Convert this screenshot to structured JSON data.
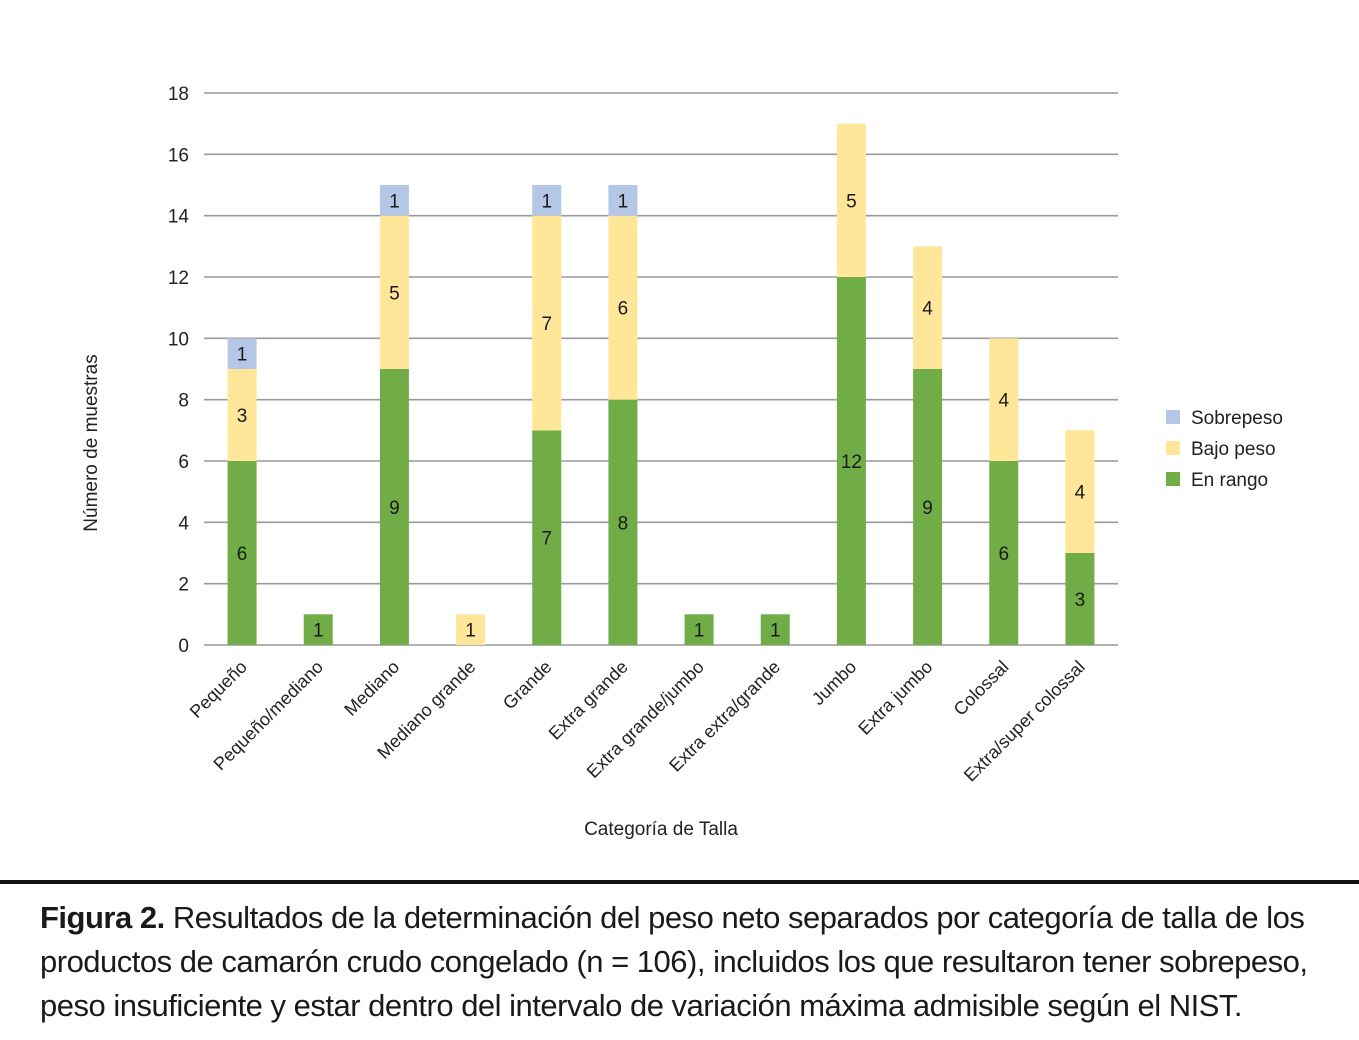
{
  "chart_data": {
    "type": "bar",
    "stacked": true,
    "categories": [
      "Pequeño",
      "Pequeño/mediano",
      "Mediano",
      "Mediano grande",
      "Grande",
      "Extra grande",
      "Extra grande/jumbo",
      "Extra extra/grande",
      "Jumbo",
      "Extra jumbo",
      "Colossal",
      "Extra/super colossal"
    ],
    "series": [
      {
        "name": "En rango",
        "color": "#70ad47",
        "values": [
          6,
          1,
          9,
          0,
          7,
          8,
          1,
          1,
          12,
          9,
          6,
          3
        ]
      },
      {
        "name": "Bajo peso",
        "color": "#ffe699",
        "values": [
          3,
          0,
          5,
          1,
          7,
          6,
          0,
          0,
          5,
          4,
          4,
          4
        ]
      },
      {
        "name": "Sobrepeso",
        "color": "#b4c7e7",
        "values": [
          1,
          0,
          1,
          0,
          1,
          1,
          0,
          0,
          0,
          0,
          0,
          0
        ]
      }
    ],
    "legend_order": [
      "Sobrepeso",
      "Bajo peso",
      "En rango"
    ],
    "ylim": [
      0,
      18
    ],
    "yticks": [
      0,
      2,
      4,
      6,
      8,
      10,
      12,
      14,
      16,
      18
    ],
    "xlabel": "Categoría de Talla",
    "ylabel": "Número de muestras",
    "grid": true,
    "legend_position": "right"
  },
  "caption": {
    "label": "Figura 2.",
    "text": " Resultados de la determinación del peso neto separados por categoría de talla de los productos de camarón crudo congelado (n = 106), incluidos los que resultaron tener sobrepeso, peso insuficiente y estar dentro del intervalo de variación máxima admisible según el NIST."
  }
}
